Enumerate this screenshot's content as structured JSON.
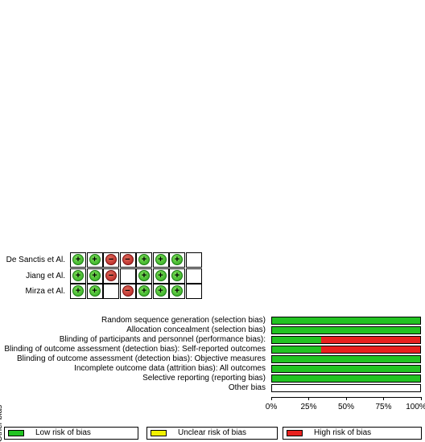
{
  "chart_data": [
    {
      "type": "table",
      "columns": [
        "Random sequence generation (selection bias)",
        "Allocation concealment (selection bias)",
        "Blinding of participants and personnel (performance bias):",
        "Blinding of outcome assessment (detection bias): Self-reported outcomes",
        "Blinding of outcome assessment (detection bias): Objective measures",
        "Incomplete outcome data (attrition bias): All outcomes",
        "Selective reporting (reporting bias)",
        "Other bias"
      ],
      "rows": [
        {
          "study": "De Sanctis et Al.",
          "judgements": [
            "low",
            "low",
            "high",
            "high",
            "low",
            "low",
            "low",
            ""
          ]
        },
        {
          "study": "Jiang et Al.",
          "judgements": [
            "low",
            "low",
            "high",
            "",
            "low",
            "low",
            "low",
            ""
          ]
        },
        {
          "study": "Mirza et Al.",
          "judgements": [
            "low",
            "low",
            "",
            "high",
            "low",
            "low",
            "low",
            ""
          ]
        }
      ],
      "symbols": {
        "low": "+",
        "high": "−"
      }
    },
    {
      "type": "bar",
      "orientation": "horizontal",
      "stacked": true,
      "categories": [
        "Random sequence generation (selection bias)",
        "Allocation concealment (selection bias)",
        "Blinding of participants and personnel (performance bias):",
        "Blinding of outcome assessment (detection bias): Self-reported outcomes",
        "Blinding of outcome assessment (detection bias): Objective measures",
        "Incomplete outcome data (attrition bias): All outcomes",
        "Selective reporting (reporting bias)",
        "Other bias"
      ],
      "series": [
        {
          "name": "Low risk of bias",
          "color": "#22c322",
          "values": [
            100,
            100,
            33.3,
            33.3,
            100,
            100,
            100,
            0
          ]
        },
        {
          "name": "Unclear risk of bias",
          "color": "#f0f000",
          "values": [
            0,
            0,
            0,
            0,
            0,
            0,
            0,
            0
          ]
        },
        {
          "name": "High risk of bias",
          "color": "#e8201e",
          "values": [
            0,
            0,
            66.7,
            66.7,
            0,
            0,
            0,
            0
          ]
        }
      ],
      "xticks": [
        "0%",
        "25%",
        "50%",
        "75%",
        "100%"
      ],
      "xlim": [
        0,
        100
      ],
      "legend": "bottom"
    }
  ]
}
